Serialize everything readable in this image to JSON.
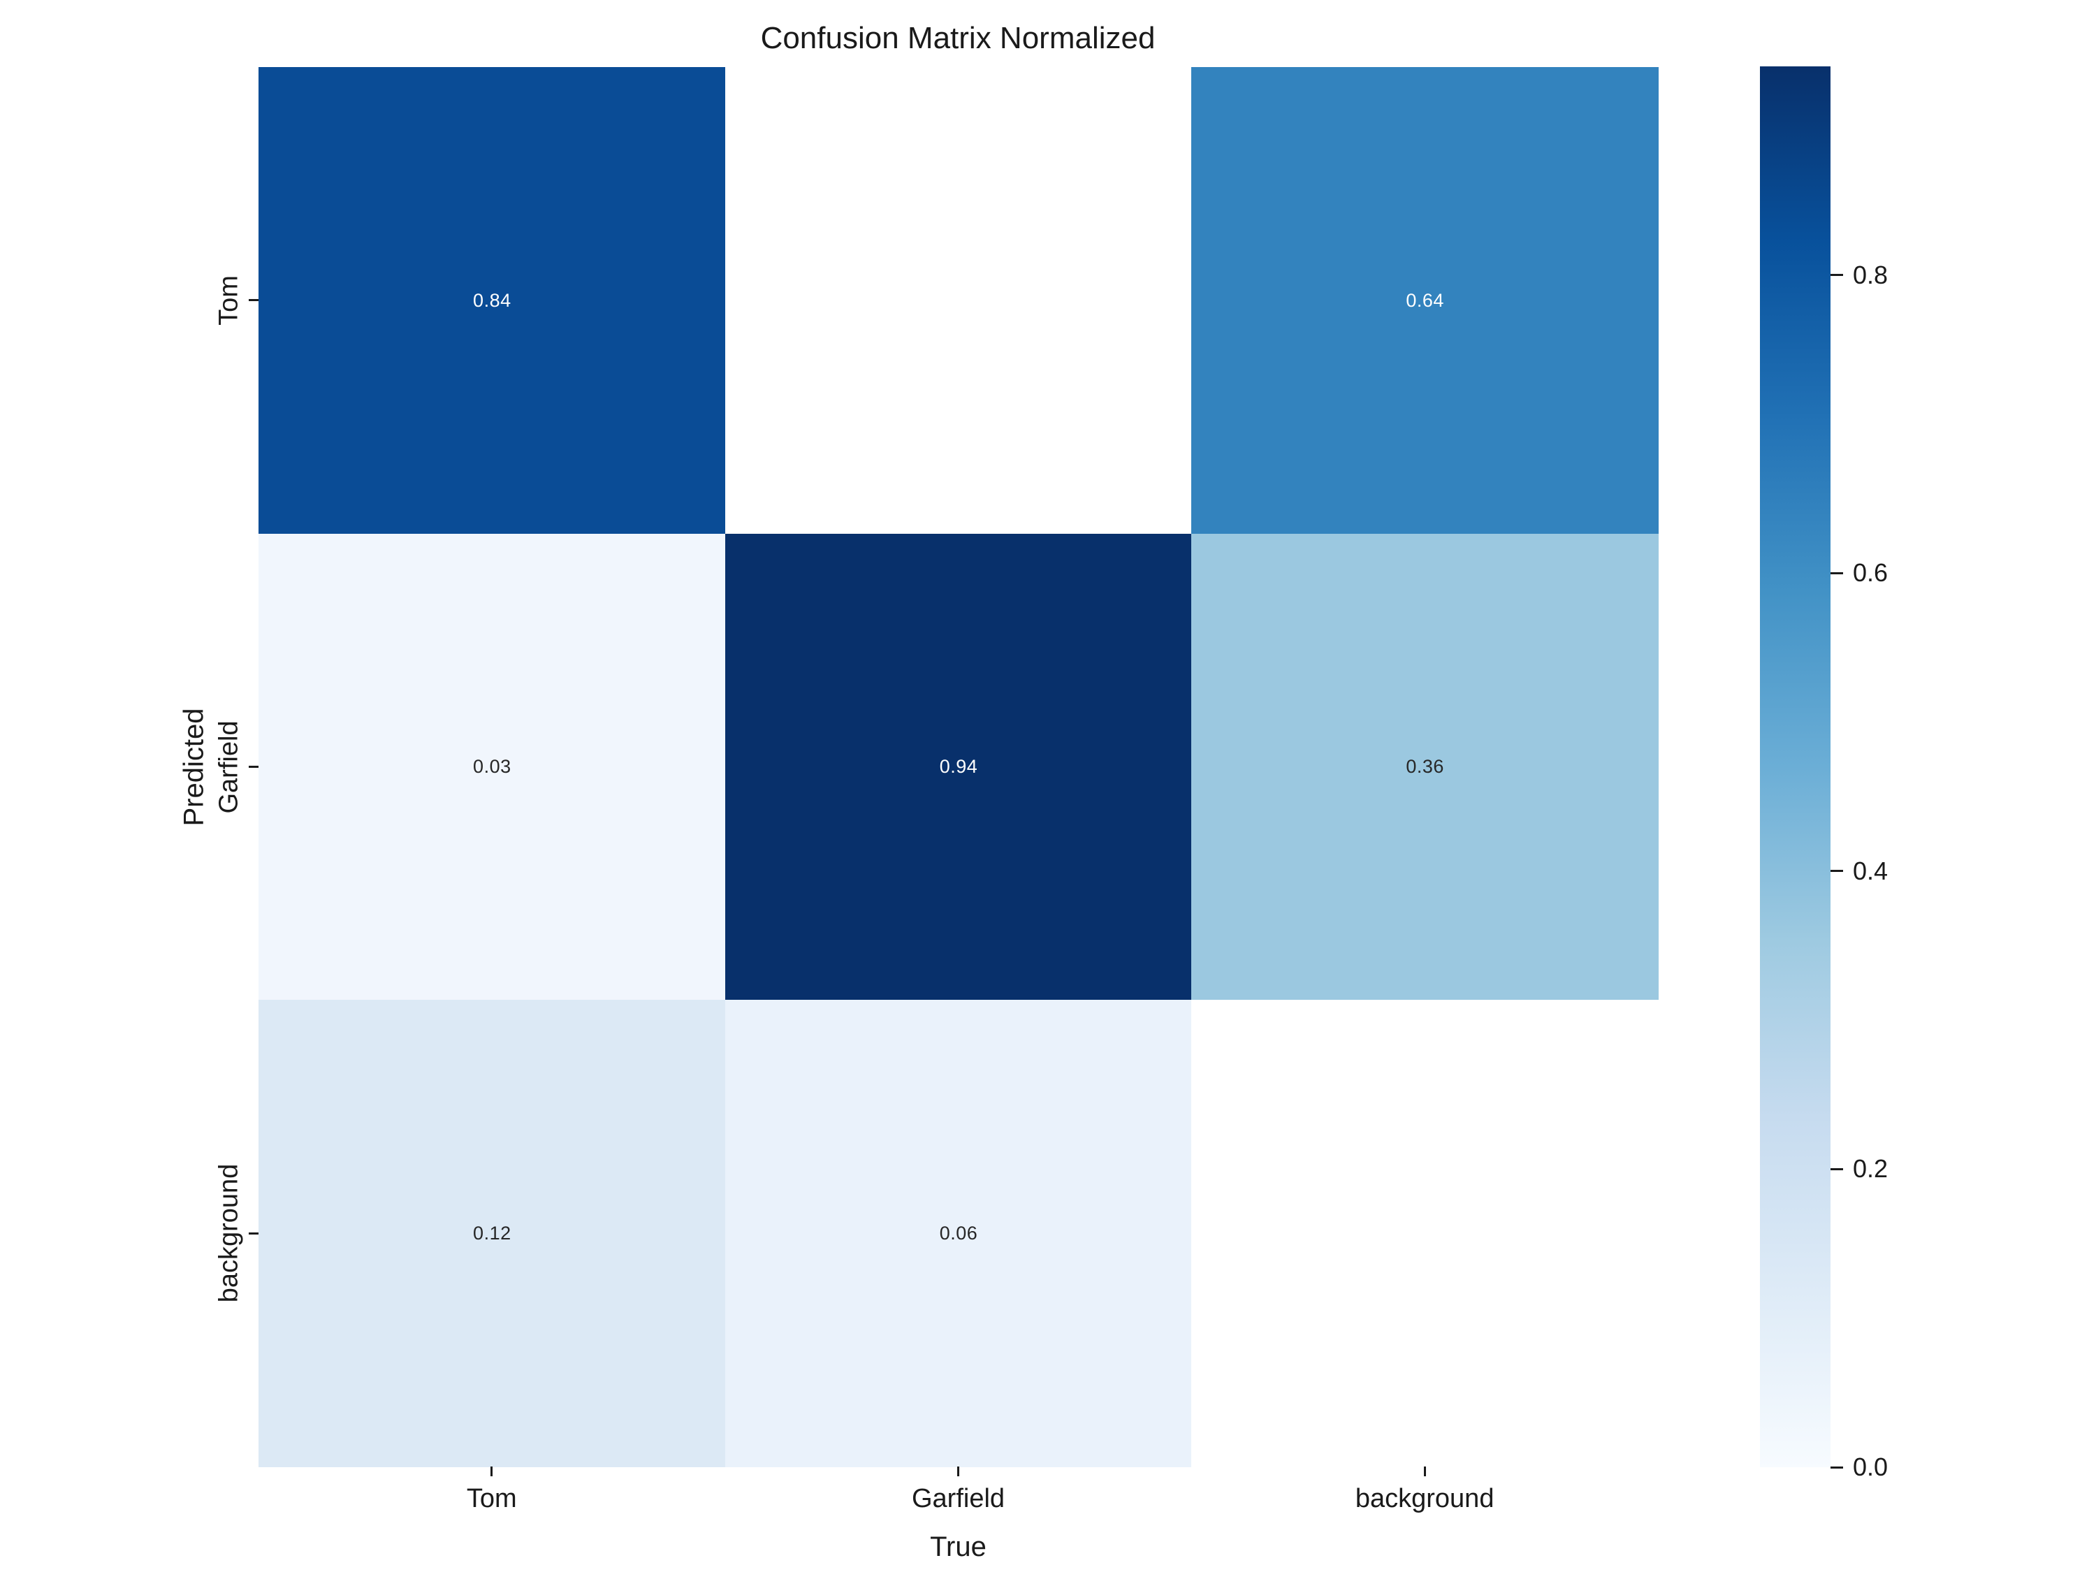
{
  "chart_data": {
    "type": "heatmap",
    "title": "Confusion Matrix Normalized",
    "xlabel": "True",
    "ylabel": "Predicted",
    "x_categories": [
      "Tom",
      "Garfield",
      "background"
    ],
    "y_categories": [
      "Tom",
      "Garfield",
      "background"
    ],
    "series": [
      {
        "name": "Tom",
        "values": [
          0.84,
          null,
          0.64
        ]
      },
      {
        "name": "Garfield",
        "values": [
          0.03,
          0.94,
          0.36
        ]
      },
      {
        "name": "background",
        "values": [
          0.12,
          0.06,
          null
        ]
      }
    ],
    "cell_labels": [
      [
        "0.84",
        "",
        "0.64"
      ],
      [
        "0.03",
        "0.94",
        "0.36"
      ],
      [
        "0.12",
        "0.06",
        ""
      ]
    ],
    "cell_colors": [
      [
        "#0a4c96",
        "#ffffff",
        "#3383be"
      ],
      [
        "#f1f6fd",
        "#08306b",
        "#9bc8e0"
      ],
      [
        "#dce9f5",
        "#eaf2fb",
        "#ffffff"
      ]
    ],
    "cell_text_colors": [
      [
        "#ffffff",
        "",
        "#ffffff"
      ],
      [
        "#262626",
        "#ffffff",
        "#262626"
      ],
      [
        "#262626",
        "#262626",
        ""
      ]
    ],
    "colormap": "Blues",
    "grid": false,
    "legend_position": "colorbar-right",
    "colorbar": {
      "vmin": 0.0,
      "vmax": 0.94,
      "ticks": [
        "0.8",
        "0.6",
        "0.4",
        "0.2",
        "0.0"
      ],
      "tick_values": [
        0.8,
        0.6,
        0.4,
        0.2,
        0.0
      ],
      "gradient_stops": [
        "#f7fbff",
        "#deebf7",
        "#c6dbef",
        "#9ecae1",
        "#6baed6",
        "#4292c6",
        "#2171b5",
        "#08519c",
        "#08306b"
      ]
    }
  }
}
